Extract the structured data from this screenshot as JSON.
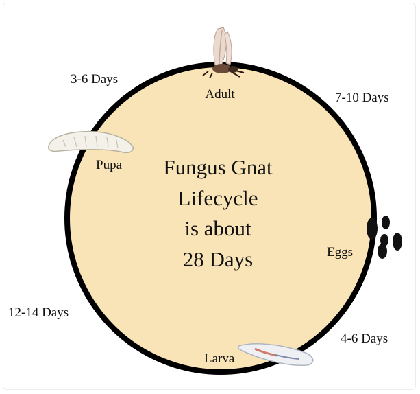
{
  "diagram": {
    "center_lines": [
      "Fungus Gnat",
      "Lifecycle",
      "is about",
      "28 Days"
    ],
    "stages": {
      "adult": "Adult",
      "eggs": "Eggs",
      "larva": "Larva",
      "pupa": "Pupa"
    },
    "durations": {
      "adult_to_eggs": "7-10 Days",
      "eggs_to_larva": "4-6 Days",
      "larva_to_pupa": "12-14 Days",
      "pupa_to_adult": "3-6 Days"
    },
    "colors": {
      "circle_fill": "#f9e4b7",
      "circle_stroke": "#000000"
    },
    "icons": [
      "adult-gnat-icon",
      "eggs-icon",
      "larva-icon",
      "pupa-icon"
    ]
  }
}
